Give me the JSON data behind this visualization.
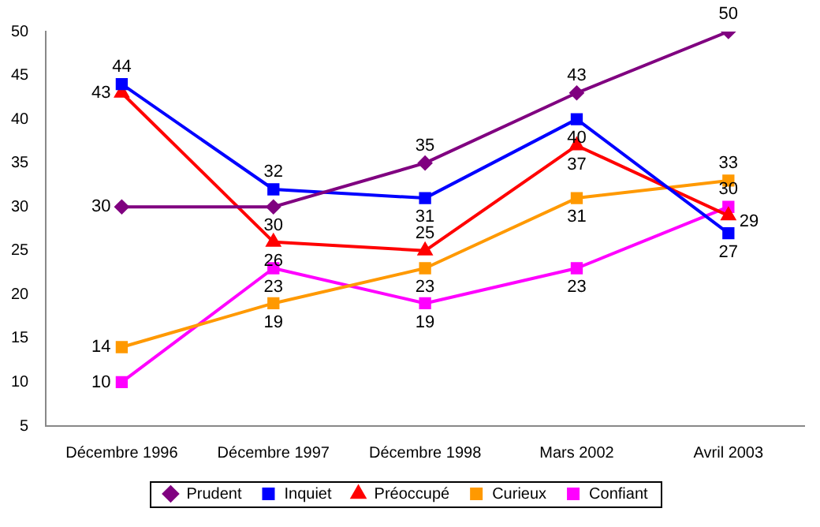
{
  "chart_data": {
    "type": "line",
    "categories": [
      "Décembre 1996",
      "Décembre 1997",
      "Décembre 1998",
      "Mars 2002",
      "Avril 2003"
    ],
    "series": [
      {
        "name": "Prudent",
        "color": "#800080",
        "marker": "diamond",
        "values": [
          30,
          30,
          35,
          43,
          50
        ]
      },
      {
        "name": "Inquiet",
        "color": "#0000ff",
        "marker": "square",
        "values": [
          44,
          32,
          31,
          40,
          27
        ]
      },
      {
        "name": "Préoccupé",
        "color": "#ff0000",
        "marker": "triangle",
        "values": [
          43,
          26,
          25,
          37,
          29
        ]
      },
      {
        "name": "Curieux",
        "color": "#ff9900",
        "marker": "square",
        "values": [
          14,
          19,
          23,
          31,
          33
        ]
      },
      {
        "name": "Confiant",
        "color": "#ff00ff",
        "marker": "square",
        "values": [
          10,
          23,
          19,
          23,
          30
        ]
      }
    ],
    "ylim": [
      5,
      50
    ],
    "yticks": [
      5,
      10,
      15,
      20,
      25,
      30,
      35,
      40,
      45,
      50
    ],
    "grid": false,
    "legend": "bottom",
    "data_labels": true
  }
}
